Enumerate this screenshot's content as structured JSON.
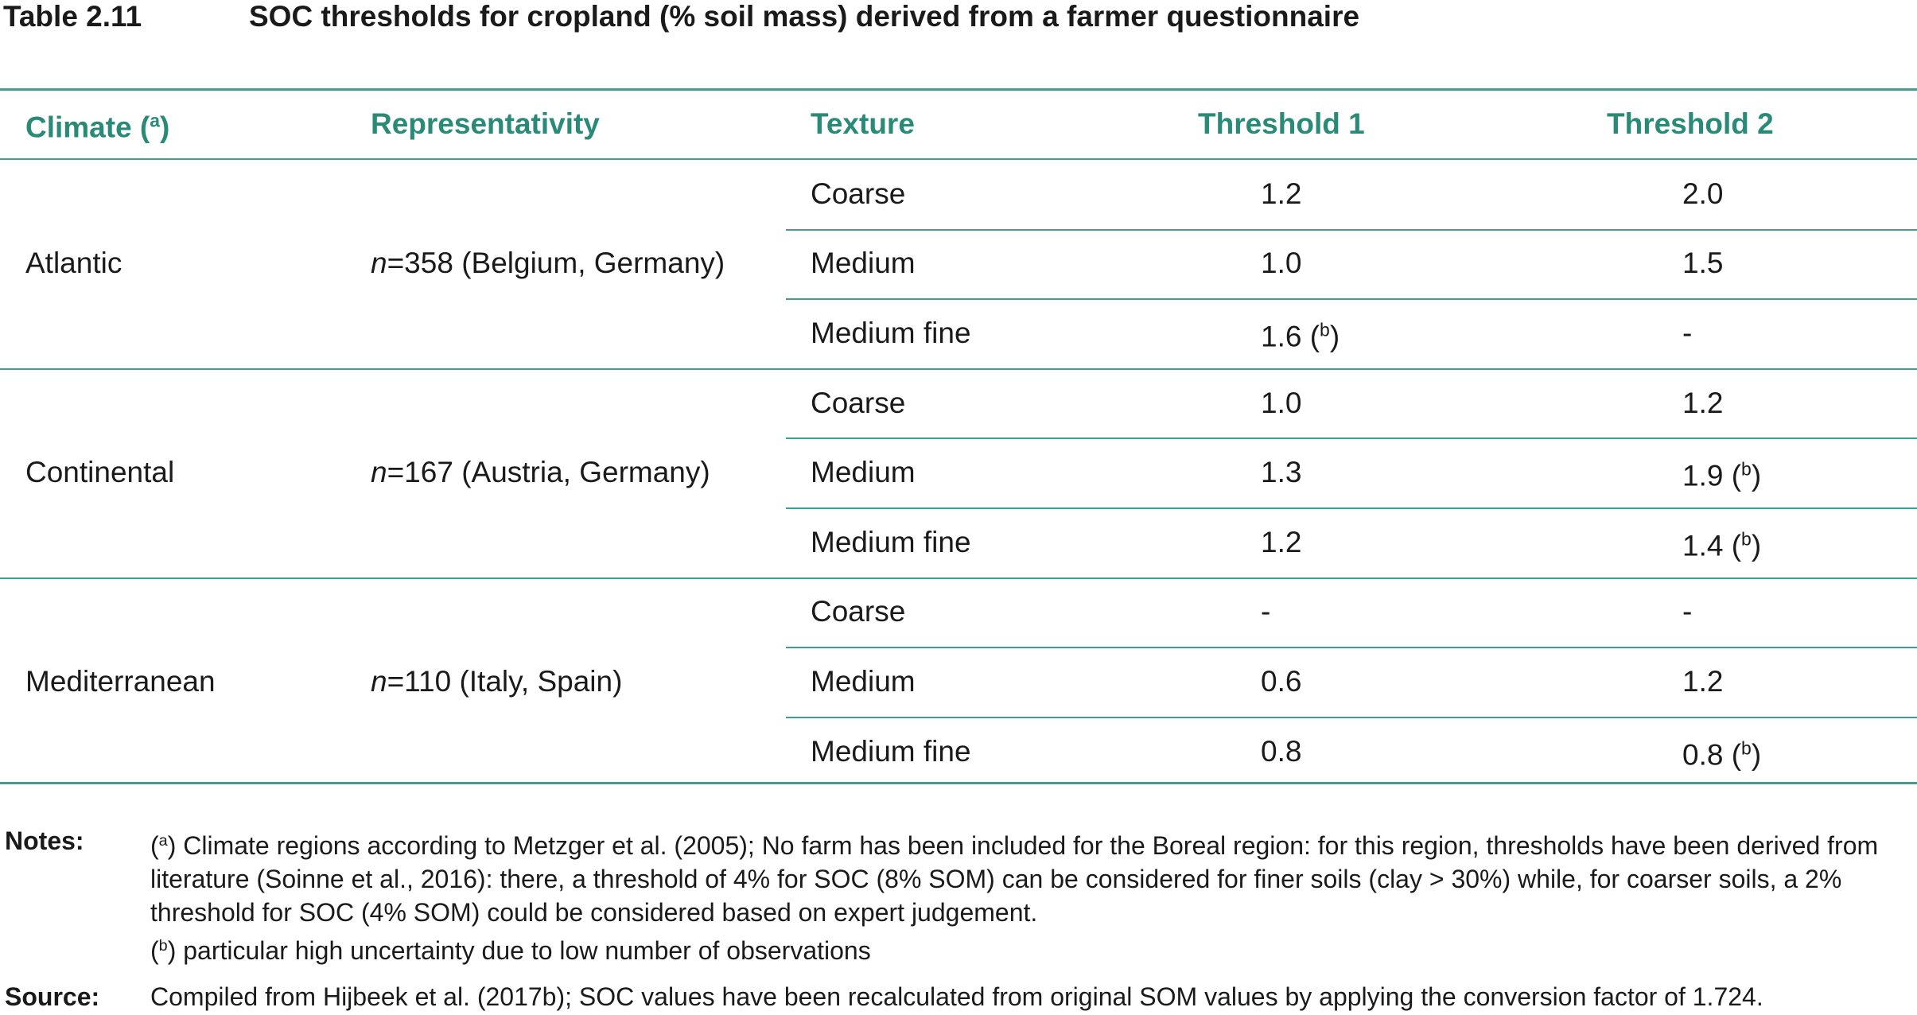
{
  "table_label": "Table 2.11",
  "title": "SOC thresholds for cropland (% soil mass) derived from a farmer questionnaire",
  "table": {
    "header": [
      {
        "text": "Climate (",
        "sup": "a",
        "close": ")"
      },
      {
        "text": "Representativity"
      },
      {
        "text": "Texture"
      },
      {
        "text": "Threshold 1"
      },
      {
        "text": "Threshold 2"
      }
    ],
    "groups": [
      {
        "climate": "Atlantic",
        "rep": {
          "var": "n",
          "text": "=358 (Belgium, Germany)"
        },
        "rows": [
          {
            "texture": "Coarse",
            "t1": {
              "text": "1.2"
            },
            "t2": {
              "text": "2.0"
            }
          },
          {
            "texture": "Medium",
            "t1": {
              "text": "1.0"
            },
            "t2": {
              "text": "1.5"
            }
          },
          {
            "texture": "Medium fine",
            "t1": {
              "text": "1.6",
              "open": " (",
              "sup": "b",
              "close": ")"
            },
            "t2": {
              "text": "-"
            }
          }
        ]
      },
      {
        "climate": "Continental",
        "rep": {
          "var": "n",
          "text": "=167 (Austria, Germany)"
        },
        "rows": [
          {
            "texture": "Coarse",
            "t1": {
              "text": "1.0"
            },
            "t2": {
              "text": "1.2"
            }
          },
          {
            "texture": "Medium",
            "t1": {
              "text": "1.3"
            },
            "t2": {
              "text": "1.9",
              "open": " (",
              "sup": "b",
              "close": ")"
            }
          },
          {
            "texture": "Medium fine",
            "t1": {
              "text": "1.2"
            },
            "t2": {
              "text": "1.4",
              "open": " (",
              "sup": "b",
              "close": ")"
            }
          }
        ]
      },
      {
        "climate": "Mediterranean",
        "rep": {
          "var": "n",
          "text": "=110 (Italy, Spain)"
        },
        "rows": [
          {
            "texture": "Coarse",
            "t1": {
              "text": "-"
            },
            "t2": {
              "text": "-"
            }
          },
          {
            "texture": "Medium",
            "t1": {
              "text": "0.6"
            },
            "t2": {
              "text": "1.2"
            }
          },
          {
            "texture": "Medium fine",
            "t1": {
              "text": "0.8"
            },
            "t2": {
              "text": "0.8",
              "open": " (",
              "sup": "b",
              "close": ")"
            }
          }
        ]
      }
    ]
  },
  "notes": {
    "label": "Notes:",
    "items": [
      {
        "open": "(",
        "sup": "a",
        "close": ")",
        "text": " Climate regions according to Metzger et al. (2005); No farm has been included for the Boreal region: for this region, thresholds have been derived from literature (Soinne et al., 2016): there, a threshold of 4% for SOC (8% SOM) can be considered for finer soils (clay > 30%) while, for coarser soils, a 2% threshold for SOC (4% SOM) could be considered based on expert judgement."
      },
      {
        "open": "(",
        "sup": "b",
        "close": ")",
        "text": " particular high uncertainty due to low number of observations"
      }
    ]
  },
  "source": {
    "label": "Source:",
    "text": "Compiled from Hijbeek et al. (2017b); SOC values have been recalculated from original SOM values by applying the conversion factor of 1.724."
  }
}
